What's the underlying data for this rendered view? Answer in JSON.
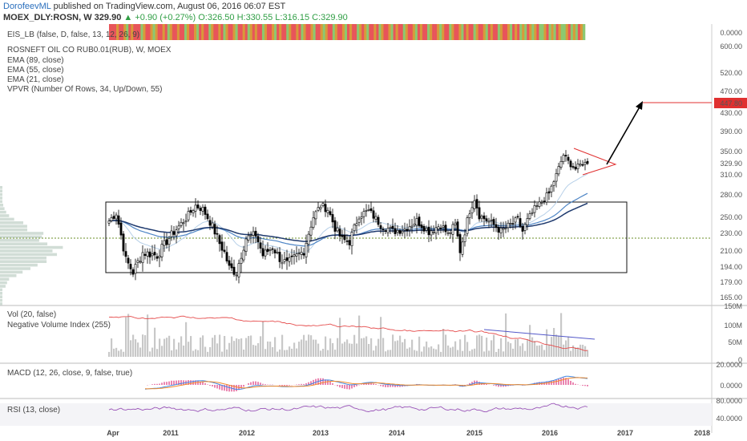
{
  "header": {
    "author": "DorofeevML",
    "published_text": "published on TradingView.com, August 06, 2016 06:07 EST",
    "symbol_line": "MOEX_DLY:ROSN, W  329.90",
    "change": "+0.90 (+0.27%)",
    "ohlc": "O:326.50  H:330.55  L:316.15  C:329.90"
  },
  "colors": {
    "up": "#2f9e44",
    "red": "#e8555a",
    "orange": "#d89a3a",
    "green": "#8cc870",
    "ema_light": "#b7d0e8",
    "ema_mid": "#4f86c6",
    "ema_dark": "#1f3a6e",
    "nvi": "#e54b4b",
    "vol_ma": "#5358c9",
    "macd": "#4488e0",
    "signal": "#f08a2a",
    "hist": "#e0508f",
    "rsi": "#9a55b8",
    "target": "#e03030"
  },
  "labels": {
    "eis": "EIS_LB (false, D, false, 13, 12, 26, 9)",
    "symbol": "ROSNEFT OIL CO RUB0.01(RUB), W, MOEX",
    "ema89": "EMA (89, close)",
    "ema55": "EMA (55, close)",
    "ema21": "EMA (21, close)",
    "vpvr": "VPVR (Number Of Rows, 34, Up/Down, 55)",
    "vol": "Vol (20, false)",
    "nvi": "Negative Volume Index (255)",
    "macd": "MACD (12, 26, close, 9, false, true)",
    "rsi": "RSI (13, close)"
  },
  "chart_data": {
    "type": "candlestick",
    "price_axis": {
      "ticks": [
        "600.00",
        "520.00",
        "470.00",
        "430.00",
        "390.00",
        "350.00",
        "310.00",
        "280.00",
        "250.00",
        "230.00",
        "210.00",
        "194.00",
        "179.00",
        "165.00"
      ],
      "log_scale": true,
      "last_price": "329.90",
      "target_price": "447.80"
    },
    "x_axis": {
      "ticks": [
        "Apr",
        "2011",
        "2012",
        "2013",
        "2014",
        "2015",
        "2016",
        "2017",
        "2018"
      ]
    },
    "eis_axis": "0.0000",
    "vol_axis": [
      "150M",
      "100M",
      "50M",
      "0"
    ],
    "macd_axis": [
      "20.0000",
      "0.0000"
    ],
    "rsi_axis": [
      "80.0000",
      "40.0000"
    ],
    "keyframes": [
      [
        0,
        245
      ],
      [
        3,
        255
      ],
      [
        7,
        200
      ],
      [
        10,
        188
      ],
      [
        14,
        208
      ],
      [
        20,
        205
      ],
      [
        26,
        228
      ],
      [
        32,
        248
      ],
      [
        36,
        265
      ],
      [
        39,
        260
      ],
      [
        43,
        238
      ],
      [
        46,
        218
      ],
      [
        48,
        208
      ],
      [
        50,
        192
      ],
      [
        53,
        188
      ],
      [
        57,
        224
      ],
      [
        61,
        228
      ],
      [
        64,
        205
      ],
      [
        68,
        214
      ],
      [
        71,
        202
      ],
      [
        74,
        196
      ],
      [
        78,
        204
      ],
      [
        81,
        210
      ],
      [
        85,
        250
      ],
      [
        88,
        265
      ],
      [
        91,
        260
      ],
      [
        94,
        236
      ],
      [
        97,
        222
      ],
      [
        100,
        220
      ],
      [
        104,
        252
      ],
      [
        108,
        258
      ],
      [
        113,
        240
      ],
      [
        118,
        232
      ],
      [
        123,
        235
      ],
      [
        128,
        245
      ],
      [
        133,
        232
      ],
      [
        138,
        240
      ],
      [
        141,
        228
      ],
      [
        144,
        240
      ],
      [
        146,
        210
      ],
      [
        148,
        232
      ],
      [
        150,
        258
      ],
      [
        152,
        275
      ],
      [
        154,
        252
      ],
      [
        157,
        246
      ],
      [
        160,
        240
      ],
      [
        163,
        232
      ],
      [
        166,
        238
      ],
      [
        170,
        246
      ],
      [
        172,
        232
      ],
      [
        174,
        245
      ],
      [
        177,
        260
      ],
      [
        180,
        270
      ],
      [
        183,
        282
      ],
      [
        186,
        310
      ],
      [
        189,
        344
      ],
      [
        191,
        332
      ],
      [
        194,
        320
      ],
      [
        197,
        330
      ],
      [
        199,
        329
      ]
    ],
    "eis_colors": [
      "r",
      "r",
      "r",
      "o",
      "r",
      "r",
      "o",
      "g",
      "r",
      "o",
      "r",
      "r",
      "r",
      "g",
      "o",
      "r",
      "r",
      "o",
      "g",
      "o",
      "r",
      "r",
      "o",
      "r",
      "g",
      "o",
      "r",
      "r",
      "o",
      "r",
      "r",
      "g",
      "o",
      "r",
      "r",
      "o",
      "g",
      "r",
      "o",
      "r",
      "r",
      "g",
      "o",
      "r",
      "r",
      "o",
      "r",
      "g",
      "o",
      "r",
      "r",
      "o",
      "g",
      "r",
      "r",
      "o",
      "r",
      "g",
      "o",
      "r",
      "o",
      "r",
      "r",
      "g",
      "o",
      "r",
      "r",
      "o",
      "g",
      "r",
      "o",
      "r",
      "r",
      "g",
      "o",
      "r",
      "r",
      "o",
      "r",
      "g",
      "o",
      "r",
      "r",
      "o",
      "g",
      "r",
      "r",
      "o",
      "g",
      "o",
      "r",
      "r",
      "g",
      "o",
      "r",
      "r",
      "o",
      "g",
      "r",
      "o",
      "r",
      "r",
      "g",
      "o",
      "r",
      "o",
      "g",
      "r",
      "r",
      "o",
      "r",
      "g",
      "o",
      "r",
      "r",
      "o",
      "g",
      "r",
      "o",
      "r",
      "r",
      "g",
      "o",
      "r",
      "r",
      "o",
      "g",
      "r",
      "o",
      "r",
      "r",
      "g",
      "o",
      "r",
      "r",
      "o",
      "g",
      "o",
      "r",
      "r",
      "g",
      "o",
      "r",
      "r",
      "o",
      "g",
      "r",
      "o",
      "r",
      "r",
      "g",
      "o",
      "r",
      "r",
      "o",
      "g",
      "r",
      "o",
      "r",
      "r",
      "g",
      "o",
      "r",
      "r",
      "o",
      "g",
      "r",
      "o",
      "r",
      "g",
      "o",
      "g",
      "r",
      "o",
      "g",
      "o",
      "r",
      "g",
      "g",
      "o",
      "r",
      "g",
      "o",
      "g",
      "r",
      "o",
      "g",
      "g",
      "o",
      "r",
      "g",
      "o",
      "g",
      "r",
      "o",
      "g"
    ]
  }
}
